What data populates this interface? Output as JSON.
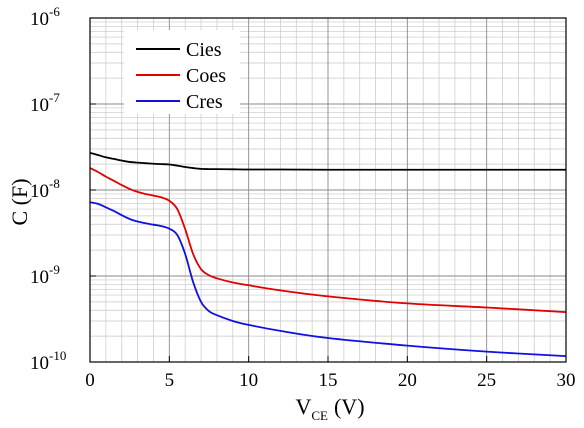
{
  "chart_data": {
    "type": "line",
    "title": "",
    "xlabel": {
      "main": "V",
      "sub": "CE",
      "unit": "(V)"
    },
    "ylabel": "C (F)",
    "xlim": [
      0,
      30
    ],
    "ylim": [
      1e-10,
      1e-06
    ],
    "yscale": "log",
    "x_ticks": [
      0,
      5,
      10,
      15,
      20,
      25,
      30
    ],
    "y_ticks": [
      {
        "base": "10",
        "exp": "-10",
        "value": 1e-10
      },
      {
        "base": "10",
        "exp": "-9",
        "value": 1e-09
      },
      {
        "base": "10",
        "exp": "-8",
        "value": 1e-08
      },
      {
        "base": "10",
        "exp": "-7",
        "value": 1e-07
      },
      {
        "base": "10",
        "exp": "-6",
        "value": 1e-06
      }
    ],
    "grid": true,
    "legend_position": "top-left",
    "series": [
      {
        "name": "Cies",
        "color": "#000000",
        "x": [
          0,
          0.5,
          1,
          1.5,
          2,
          2.5,
          3,
          3.5,
          4,
          4.5,
          5,
          5.5,
          6,
          6.5,
          7,
          7.5,
          8,
          9,
          10,
          12,
          15,
          20,
          25,
          30
        ],
        "y": [
          2.7e-08,
          2.55e-08,
          2.4e-08,
          2.3e-08,
          2.2e-08,
          2.12e-08,
          2.08e-08,
          2.05e-08,
          2.02e-08,
          2e-08,
          1.98e-08,
          1.92e-08,
          1.85e-08,
          1.8e-08,
          1.76e-08,
          1.75e-08,
          1.75e-08,
          1.74e-08,
          1.73e-08,
          1.73e-08,
          1.72e-08,
          1.72e-08,
          1.72e-08,
          1.72e-08
        ]
      },
      {
        "name": "Coes",
        "color": "#e00000",
        "x": [
          0,
          0.5,
          1,
          1.5,
          2,
          2.5,
          3,
          3.5,
          4,
          4.5,
          5,
          5.5,
          6,
          6.5,
          7,
          7.5,
          8,
          9,
          10,
          12,
          15,
          20,
          25,
          30
        ],
        "y": [
          1.8e-08,
          1.62e-08,
          1.43e-08,
          1.28e-08,
          1.14e-08,
          1.03e-08,
          9.5e-09,
          9e-09,
          8.6e-09,
          8.2e-09,
          7.5e-09,
          6e-09,
          3.5e-09,
          1.8e-09,
          1.2e-09,
          1.02e-09,
          9.4e-10,
          8.4e-10,
          7.8e-10,
          6.8e-10,
          5.8e-10,
          4.8e-10,
          4.3e-10,
          3.8e-10
        ]
      },
      {
        "name": "Cres",
        "color": "#1010e0",
        "x": [
          0,
          0.5,
          1,
          1.5,
          2,
          2.5,
          3,
          3.5,
          4,
          4.5,
          5,
          5.5,
          6,
          6.5,
          7,
          7.5,
          8,
          9,
          10,
          12,
          15,
          20,
          25,
          30
        ],
        "y": [
          7.2e-09,
          6.9e-09,
          6.3e-09,
          5.7e-09,
          5.1e-09,
          4.6e-09,
          4.3e-09,
          4.1e-09,
          3.95e-09,
          3.8e-09,
          3.55e-09,
          3e-09,
          1.8e-09,
          8.5e-10,
          5e-10,
          3.9e-10,
          3.5e-10,
          3e-10,
          2.7e-10,
          2.3e-10,
          1.9e-10,
          1.55e-10,
          1.32e-10,
          1.17e-10
        ]
      }
    ]
  }
}
